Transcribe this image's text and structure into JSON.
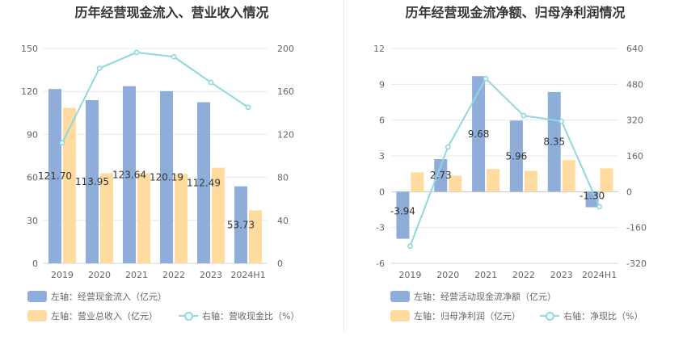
{
  "colors": {
    "blue": "#8eadd9",
    "orange": "#ffdba0",
    "line": "#8fd8de",
    "grid": "#e8e8e8",
    "axis_text": "#666666",
    "label_text": "#333333"
  },
  "chart_data": [
    {
      "type": "bar",
      "title": "历年经营现金流入、营业收入情况",
      "categories": [
        "2019",
        "2020",
        "2021",
        "2022",
        "2023",
        "2024H1"
      ],
      "left_ticks": [
        "150",
        "120",
        "90",
        "60",
        "30",
        "0"
      ],
      "right_ticks": [
        "200",
        "160",
        "120",
        "80",
        "40",
        "0"
      ],
      "ylim_left": [
        0,
        150
      ],
      "ylim_right": [
        0,
        200
      ],
      "series": [
        {
          "name": "左轴：经营现金流入（亿元）",
          "axis": "left",
          "kind": "bar",
          "values": [
            121.7,
            113.95,
            123.64,
            120.19,
            112.49,
            53.73
          ],
          "labels": [
            "121.70",
            "113.95",
            "123.64",
            "120.19",
            "112.49",
            "53.73"
          ]
        },
        {
          "name": "左轴：营业总收入（亿元）",
          "axis": "left",
          "kind": "bar",
          "values": [
            108.5,
            62.8,
            63.0,
            62.5,
            66.8,
            37.0
          ]
        },
        {
          "name": "右轴：营收现金比（%）",
          "axis": "right",
          "kind": "line",
          "values": [
            112.2,
            181.5,
            196.3,
            192.3,
            168.4,
            145.2
          ]
        }
      ]
    },
    {
      "type": "bar",
      "title": "历年经营现金流净额、归母净利润情况",
      "categories": [
        "2019",
        "2020",
        "2021",
        "2022",
        "2023",
        "2024H1"
      ],
      "left_ticks": [
        "12",
        "9",
        "6",
        "3",
        "0",
        "-3",
        "-6"
      ],
      "right_ticks": [
        "640",
        "480",
        "320",
        "160",
        "0",
        "-160",
        "-320"
      ],
      "ylim_left": [
        -6,
        12
      ],
      "ylim_right": [
        -320,
        640
      ],
      "series": [
        {
          "name": "左轴：经营活动现金流净额（亿元）",
          "axis": "left",
          "kind": "bar",
          "values": [
            -3.94,
            2.73,
            9.68,
            5.96,
            8.35,
            -1.3
          ],
          "labels": [
            "-3.94",
            "2.73",
            "9.68",
            "5.96",
            "8.35",
            "-1.30"
          ]
        },
        {
          "name": "左轴：归母净利润（亿元）",
          "axis": "left",
          "kind": "bar",
          "values": [
            1.62,
            1.35,
            1.9,
            1.75,
            2.65,
            1.95
          ]
        },
        {
          "name": "右轴：净现比（%）",
          "axis": "right",
          "kind": "line",
          "values": [
            -243,
            200,
            505,
            340,
            315,
            -67
          ]
        }
      ]
    }
  ]
}
